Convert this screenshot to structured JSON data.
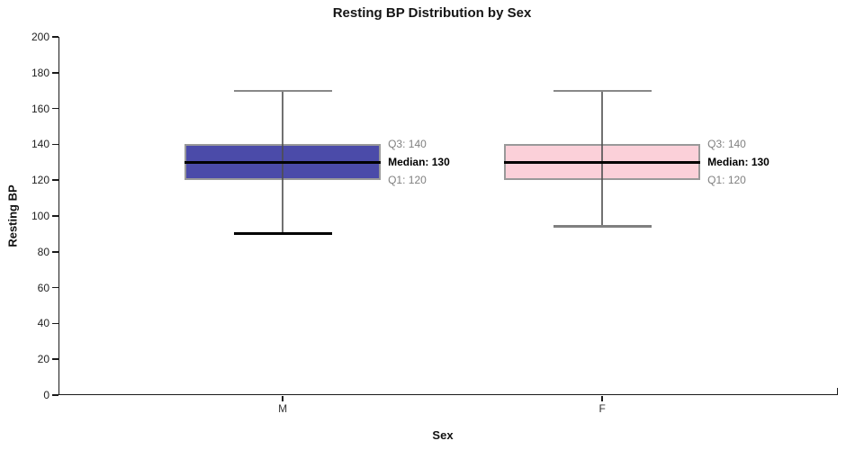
{
  "chart_data": {
    "type": "boxplot",
    "title": "Resting BP Distribution by Sex",
    "xlabel": "Sex",
    "ylabel": "Resting BP",
    "ylim": [
      0,
      200
    ],
    "yticks": [
      0,
      20,
      40,
      60,
      80,
      100,
      120,
      140,
      160,
      180,
      200
    ],
    "categories": [
      "M",
      "F"
    ],
    "grid": false,
    "series": [
      {
        "name": "M",
        "whisker_low": 90,
        "q1": 120,
        "median": 130,
        "q3": 140,
        "whisker_high": 170,
        "box_fill": "#4B4BA9",
        "box_border": "#999999",
        "median_color": "#000000",
        "whisker_color": "#4d4d4d",
        "cap_top_color": "#888888",
        "cap_bottom_color": "#000000",
        "annotations": {
          "q3": "Q3: 140",
          "median": "Median: 130",
          "q1": "Q1: 120"
        }
      },
      {
        "name": "F",
        "whisker_low": 94,
        "q1": 120,
        "median": 130,
        "q3": 140,
        "whisker_high": 170,
        "box_fill": "#FBD0D9",
        "box_border": "#999999",
        "median_color": "#000000",
        "whisker_color": "#4d4d4d",
        "cap_top_color": "#888888",
        "cap_bottom_color": "#808080",
        "annotations": {
          "q3": "Q3: 140",
          "median": "Median: 130",
          "q1": "Q1: 120"
        }
      }
    ],
    "annotation_colors": {
      "quartile": "#808080",
      "median": "#000000"
    }
  }
}
